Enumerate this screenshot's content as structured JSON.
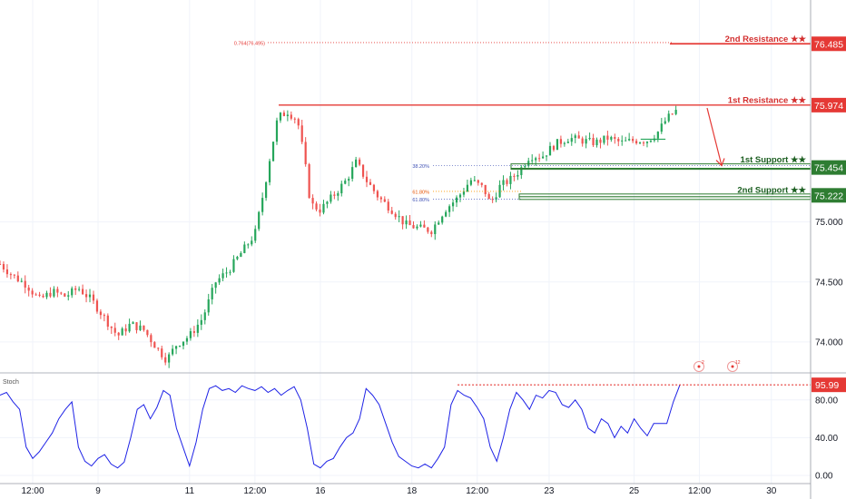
{
  "chart_data": [
    {
      "type": "candlestick",
      "title": "",
      "ylim": [
        73.75,
        76.85
      ],
      "y_ticks": [
        74.0,
        74.5,
        75.0
      ],
      "y_tick_labels": [
        "74.000",
        "74.500",
        "75.000"
      ],
      "x_labels": [
        {
          "label": "12:00",
          "x": 5
        },
        {
          "label": "9",
          "x": 15
        },
        {
          "label": "11",
          "x": 29
        },
        {
          "label": "12:00",
          "x": 39
        },
        {
          "label": "16",
          "x": 49
        },
        {
          "label": "18",
          "x": 63
        },
        {
          "label": "12:00",
          "x": 73
        },
        {
          "label": "23",
          "x": 84
        },
        {
          "label": "25",
          "x": 97
        },
        {
          "label": "12:00",
          "x": 107
        },
        {
          "label": "30",
          "x": 118
        }
      ],
      "x_range": [
        0,
        124
      ],
      "candle_path": [
        [
          0,
          74.65
        ],
        [
          2,
          74.55
        ],
        [
          4,
          74.48
        ],
        [
          6,
          74.35
        ],
        [
          8,
          74.42
        ],
        [
          10,
          74.38
        ],
        [
          12,
          74.45
        ],
        [
          14,
          74.35
        ],
        [
          16,
          74.2
        ],
        [
          18,
          74.05
        ],
        [
          20,
          74.15
        ],
        [
          22,
          74.1
        ],
        [
          24,
          73.95
        ],
        [
          25.5,
          73.85
        ],
        [
          27,
          73.98
        ],
        [
          29,
          74.05
        ],
        [
          31,
          74.2
        ],
        [
          33,
          74.5
        ],
        [
          35,
          74.6
        ],
        [
          37,
          74.75
        ],
        [
          39,
          74.9
        ],
        [
          40.5,
          75.3
        ],
        [
          41.5,
          75.6
        ],
        [
          42.5,
          75.87
        ],
        [
          44,
          75.92
        ],
        [
          45.5,
          75.85
        ],
        [
          46.5,
          75.55
        ],
        [
          47.5,
          75.15
        ],
        [
          49,
          75.1
        ],
        [
          51,
          75.22
        ],
        [
          53,
          75.35
        ],
        [
          54.5,
          75.5
        ],
        [
          56,
          75.35
        ],
        [
          58,
          75.2
        ],
        [
          60,
          75.1
        ],
        [
          62,
          74.98
        ],
        [
          64,
          74.95
        ],
        [
          66,
          74.93
        ],
        [
          68,
          75.1
        ],
        [
          70,
          75.2
        ],
        [
          72,
          75.35
        ],
        [
          74,
          75.28
        ],
        [
          75,
          75.15
        ],
        [
          76.5,
          75.3
        ],
        [
          78,
          75.35
        ],
        [
          79.5,
          75.43
        ],
        [
          81,
          75.55
        ],
        [
          83,
          75.55
        ],
        [
          85,
          75.65
        ],
        [
          87,
          75.7
        ],
        [
          89,
          75.68
        ],
        [
          91,
          75.66
        ],
        [
          93,
          75.7
        ],
        [
          95,
          75.66
        ],
        [
          97,
          75.68
        ],
        [
          99,
          75.68
        ],
        [
          100.5,
          75.74
        ],
        [
          102,
          75.86
        ],
        [
          103.5,
          75.93
        ]
      ],
      "annotations": {
        "fib_0764_label": "0.764(76.495)",
        "fib_0764_value": 76.495,
        "fib_382_label": "38.20%",
        "fib_382_value": 75.47,
        "fib_618_label_a": "61.80%",
        "fib_618_value_a": 75.255,
        "fib_618_label_b": "61.80%",
        "fib_618_value_b": 75.19,
        "resistance_2_label": "2nd Resistance ★★",
        "resistance_2_value": 76.485,
        "resistance_2_price": "76.485",
        "resistance_1_label": "1st Resistance ★★",
        "resistance_1_value": 75.974,
        "resistance_1_price": "75.974",
        "support_1_label": "1st Support ★★",
        "support_1_value": 75.454,
        "support_1_price": "75.454",
        "support_2_label": "2nd Support ★★",
        "support_2_value": 75.222,
        "support_2_price": "75.222"
      },
      "event_markers": [
        "2",
        "12"
      ]
    },
    {
      "type": "line",
      "title": "Stoch",
      "ylim": [
        0,
        100
      ],
      "y_ticks": [
        0,
        40,
        80
      ],
      "y_tick_labels": [
        "0.00",
        "40.00",
        "80.00"
      ],
      "current_label": "95.99",
      "current_value": 95.99,
      "series": [
        {
          "color": "#1e22e6",
          "x": [
            0,
            1,
            2,
            3,
            4,
            5,
            6,
            7,
            8,
            9,
            10,
            11,
            12,
            13,
            14,
            15,
            16,
            17,
            18,
            19,
            20,
            21,
            22,
            23,
            24,
            25,
            26,
            27,
            28,
            29,
            30,
            31,
            32,
            33,
            34,
            35,
            36,
            37,
            38,
            39,
            40,
            41,
            42,
            43,
            44,
            45,
            46,
            47,
            48,
            49,
            50,
            51,
            52,
            53,
            54,
            55,
            56,
            57,
            58,
            59,
            60,
            61,
            62,
            63,
            64,
            65,
            66,
            67,
            68,
            69,
            70,
            71,
            72,
            73,
            74,
            75,
            76,
            77,
            78,
            79,
            80,
            81,
            82,
            83,
            84,
            85,
            86,
            87,
            88,
            89,
            90,
            91,
            92,
            93,
            94,
            95,
            96,
            97,
            98,
            99,
            100,
            101,
            102,
            103,
            104
          ],
          "values": [
            85,
            88,
            78,
            70,
            30,
            18,
            25,
            35,
            45,
            60,
            70,
            78,
            30,
            15,
            10,
            18,
            22,
            12,
            8,
            14,
            40,
            70,
            75,
            60,
            72,
            90,
            85,
            50,
            30,
            10,
            35,
            70,
            92,
            95,
            90,
            92,
            88,
            95,
            92,
            90,
            94,
            88,
            92,
            85,
            90,
            94,
            80,
            50,
            12,
            8,
            15,
            18,
            30,
            40,
            45,
            60,
            92,
            85,
            75,
            55,
            35,
            20,
            15,
            10,
            8,
            12,
            8,
            18,
            30,
            75,
            90,
            85,
            82,
            72,
            60,
            30,
            15,
            40,
            70,
            88,
            80,
            70,
            85,
            82,
            90,
            88,
            75,
            72,
            80,
            70,
            50,
            45,
            60,
            55,
            40,
            52,
            45,
            60,
            50,
            42,
            55,
            55,
            55,
            78,
            96
          ]
        }
      ],
      "dotted_level": 95.99
    }
  ]
}
